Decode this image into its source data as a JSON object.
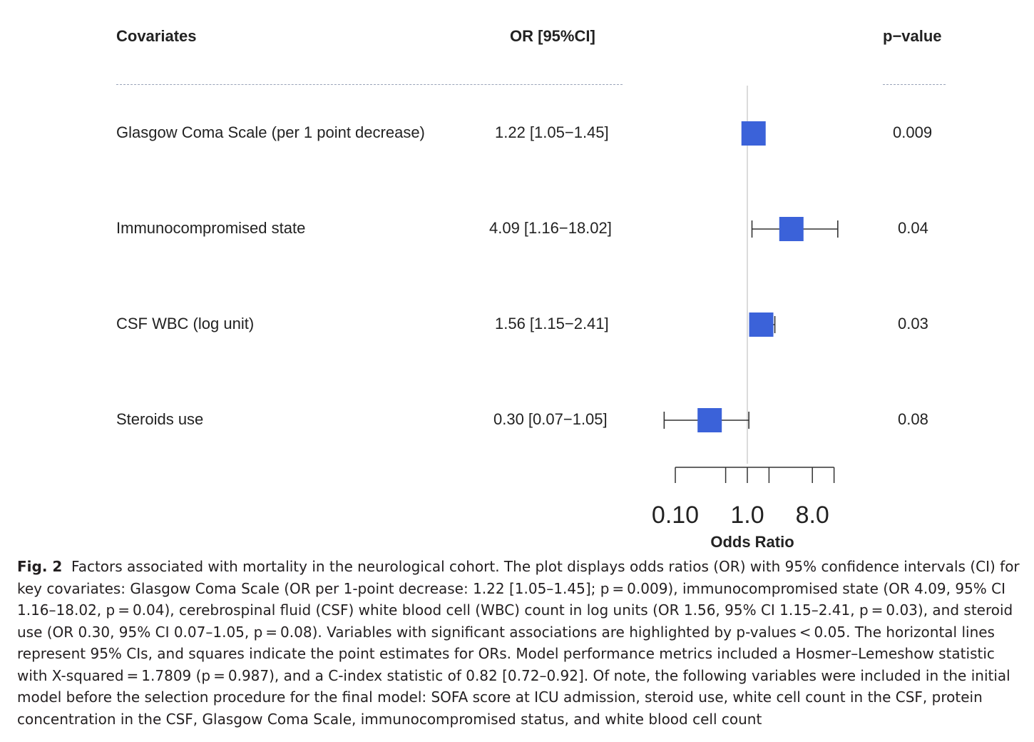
{
  "chart_data": {
    "type": "forest",
    "columns": {
      "covariates": "Covariates",
      "or_ci": "OR [95%CI]",
      "p_value": "p−value"
    },
    "rows": [
      {
        "label": "Glasgow Coma Scale (per 1 point decrease)",
        "or_text": "1.22 [1.05−1.45]",
        "p_text": "0.009",
        "or": 1.22,
        "lower": 1.05,
        "upper": 1.45
      },
      {
        "label": "Immunocompromised state",
        "or_text": "4.09 [1.16−18.02]",
        "p_text": "0.04",
        "or": 4.09,
        "lower": 1.16,
        "upper": 18.02
      },
      {
        "label": "CSF WBC (log unit)",
        "or_text": "1.56 [1.15−2.41]",
        "p_text": "0.03",
        "or": 1.56,
        "lower": 1.15,
        "upper": 2.41
      },
      {
        "label": "Steroids use",
        "or_text": "0.30 [0.07−1.05]",
        "p_text": "0.08",
        "or": 0.3,
        "lower": 0.07,
        "upper": 1.05
      }
    ],
    "x_scale": "log",
    "x_ticks": [
      0.1,
      0.5,
      1.0,
      2.0,
      8.0,
      16.0
    ],
    "x_tick_labels": [
      "0.10",
      "1.0",
      "8.0"
    ],
    "x_labeled_ticks": [
      0.1,
      1.0,
      8.0
    ],
    "reference_line": 1.0,
    "xlabel": "Odds Ratio",
    "marker_color": "#3b62d9"
  },
  "caption": {
    "fig_label": "Fig. 2",
    "text": "Factors associated with mortality in the neurological cohort. The plot displays odds ratios (OR) with 95% confidence intervals (CI) for key covariates: Glasgow Coma Scale (OR per 1-point decrease: 1.22 [1.05–1.45]; p = 0.009), immunocompromised state (OR 4.09, 95% CI 1.16–18.02, p = 0.04), cerebrospinal fluid (CSF) white blood cell (WBC) count in log units (OR 1.56, 95% CI 1.15–2.41, p = 0.03), and steroid use (OR 0.30, 95% CI 0.07–1.05, p = 0.08). Variables with significant associations are highlighted by p-values < 0.05. The horizontal lines represent 95% CIs, and squares indicate the point estimates for ORs. Model performance metrics included a Hosmer–Lemeshow statistic with X-squared = 1.7809 (p = 0.987), and a C-index statistic of 0.82 [0.72–0.92]. Of note, the following variables were included in the initial model before the selection procedure for the final model: SOFA score at ICU admission, steroid use, white cell count in the CSF, protein concentration in the CSF, Glasgow Coma Scale, immunocompromised status, and white blood cell count"
  }
}
